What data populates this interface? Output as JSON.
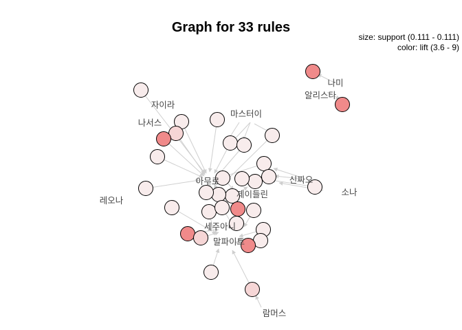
{
  "title": "Graph for 33 rules",
  "legend": {
    "size": "size: support (0.111 - 0.111)",
    "color": "color: lift (3.6 - 9)"
  },
  "colors": {
    "low_lift": "#f8ecec",
    "mid_lift": "#f6d6d6",
    "high_lift": "#f08a8a",
    "edge": "#cfcfcf"
  },
  "items": [
    {
      "id": "아무로",
      "label": "아무로"
    },
    {
      "id": "제이들린",
      "label": "제이들린"
    },
    {
      "id": "세주아니",
      "label": "세주아니"
    },
    {
      "id": "말파이트",
      "label": "말파이트"
    },
    {
      "id": "신짜오",
      "label": "신짜오"
    },
    {
      "id": "마스터이",
      "label": "마스터이"
    },
    {
      "id": "자이라",
      "label": "자이라"
    },
    {
      "id": "나서스",
      "label": "나서스"
    },
    {
      "id": "레오나",
      "label": "레오나"
    },
    {
      "id": "소나",
      "label": "소나"
    },
    {
      "id": "람머스",
      "label": "람머스"
    },
    {
      "id": "나미",
      "label": "나미"
    },
    {
      "id": "알리스타",
      "label": "알리스타"
    }
  ],
  "rule_count": 33
}
